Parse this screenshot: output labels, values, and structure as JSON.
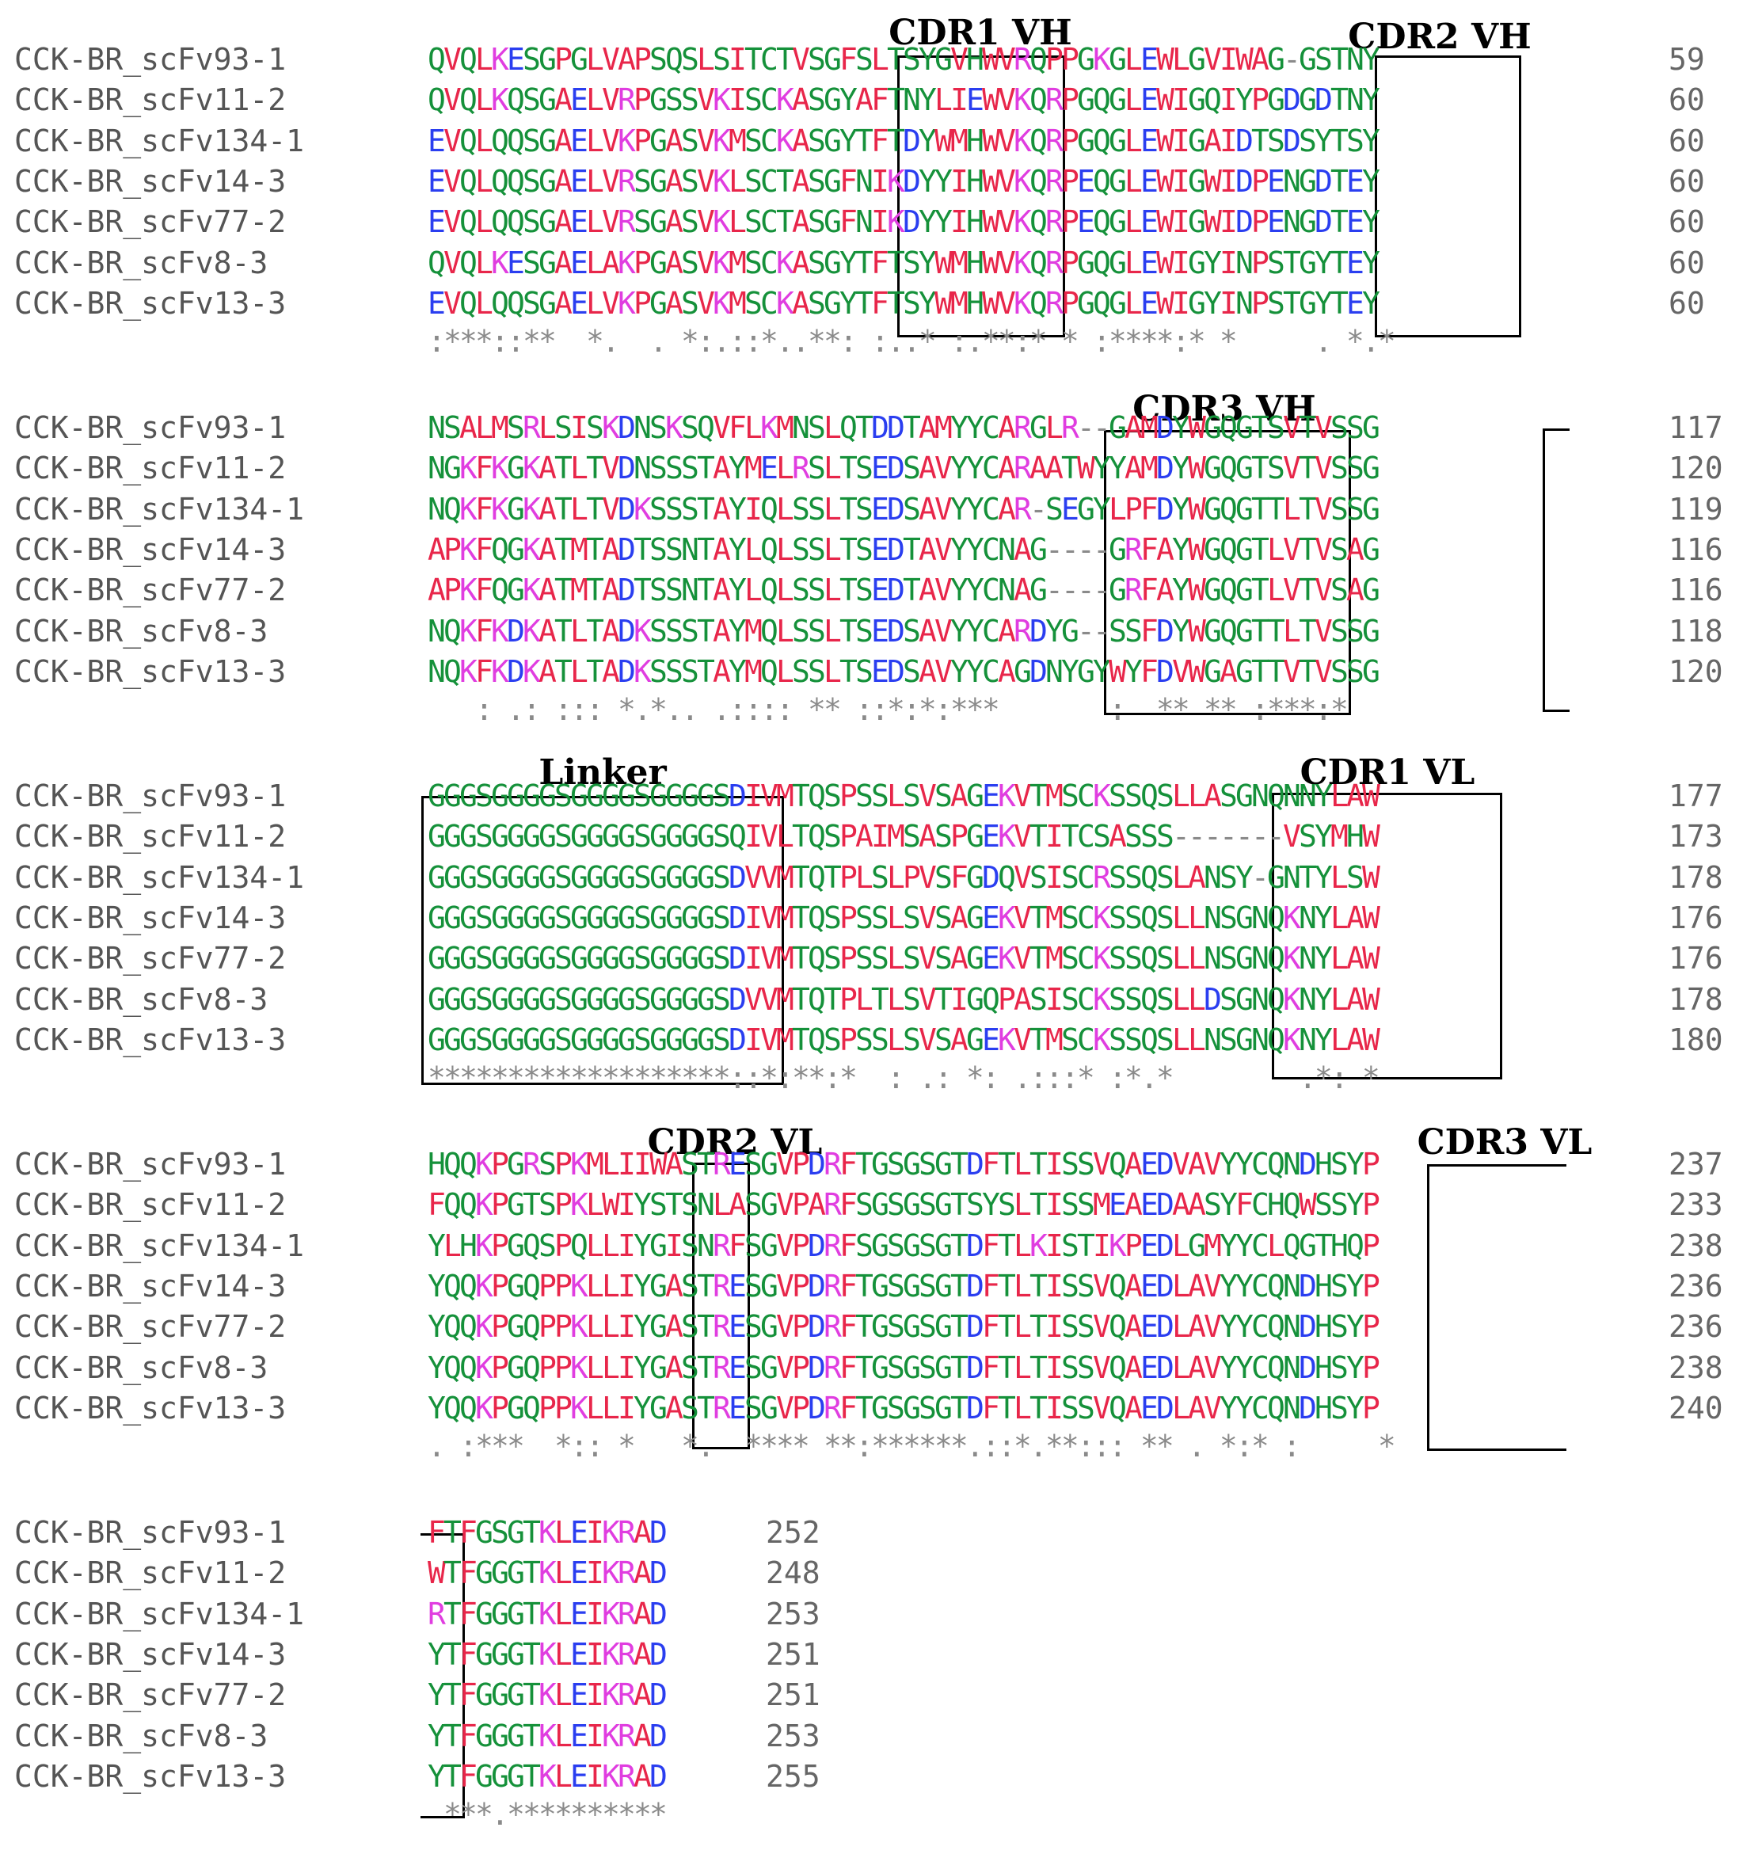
{
  "colors": {
    "hydrophobic": "#e8264a",
    "polar": "#15913a",
    "basic": "#e03de0",
    "acidic": "#2a3ef0",
    "other": "#8a8a8a"
  },
  "sequences": [
    "CCK-BR_scFv93-1",
    "CCK-BR_scFv11-2",
    "CCK-BR_scFv134-1",
    "CCK-BR_scFv14-3",
    "CCK-BR_scFv77-2",
    "CCK-BR_scFv8-3",
    "CCK-BR_scFv13-3"
  ],
  "blocks": [
    {
      "rows": [
        {
          "seq": "QVQLKESGPGLVAPSQSLSITCTVSGFSLTSYGVHWVRQPPGKGLEWLGVIWAG-GSTNY",
          "end": "59"
        },
        {
          "seq": "QVQLKQSGAELVRPGSSVKISCKASGYAFTNYLIEWVKQRPGQGLEWIGQIYPGDGDTNY",
          "end": "60"
        },
        {
          "seq": "EVQLQQSGAELVKPGASVKMSCKASGYTFTDYWMHWVKQRPGQGLEWIGAIDTSDSYTSY",
          "end": "60"
        },
        {
          "seq": "EVQLQQSGAELVRSGASVKLSCTASGFNIKDYYIHWVKQRPEQGLEWIGWIDPENGDTEY",
          "end": "60"
        },
        {
          "seq": "EVQLQQSGAELVRSGASVKLSCTASGFNIKDYYIHWVKQRPEQGLEWIGWIDPENGDTEY",
          "end": "60"
        },
        {
          "seq": "QVQLKESGAELAKPGASVKMSCKASGYTFTSYWMHWVKQRPGQGLEWIGYINPSTGYTEY",
          "end": "60"
        },
        {
          "seq": "EVQLQQSGAELVKPGASVKMSCKASGYTFTSYWMHWVKQRPGQGLEWIGYINPSTGYTEY",
          "end": "60"
        }
      ],
      "consensus": ":***::**  *.  . *:.::*..**: :..* :.**:* * :****:* *     . *.*"
    },
    {
      "rows": [
        {
          "seq": "NSALMSRLSISKDNSKSQVFLKMNSLQTDDTAMYYCARGLR--GAMDYWGQGTSVTVSSG",
          "end": "117"
        },
        {
          "seq": "NGKFKGKATLTVDNSSSTAYMELRSLTSEDSAVYYCARAATWYYAMDYWGQGTSVTVSSG",
          "end": "120"
        },
        {
          "seq": "NQKFKGKATLTVDKSSSTAYIQLSSLTSEDSAVYYCAR-SEGYLPFDYWGQGTTLTVSSG",
          "end": "119"
        },
        {
          "seq": "APKFQGKATMTADTSSNTAYLQLSSLTSEDTAVYYCNAG----GRFAYWGQGTLVTVSAG",
          "end": "116"
        },
        {
          "seq": "APKFQGKATMTADTSSNTAYLQLSSLTSEDTAVYYCNAG----GRFAYWGQGTLVTVSAG",
          "end": "116"
        },
        {
          "seq": "NQKFKDKATLTADKSSSTAYMQLSSLTSEDSAVYYCARDYG--SSFDYWGQGTTLTVSSG",
          "end": "118"
        },
        {
          "seq": "NQKFKDKATLTADKSSSTAYMQLSSLTSEDSAVYYCAGDNYGYWYFDVWGAGTTVTVSSG",
          "end": "120"
        }
      ],
      "consensus": "   : .: ::: *.*.. .:::: ** ::*:*:***       :  ** ** :***:*"
    },
    {
      "rows": [
        {
          "seq": "GGGSGGGGSGGGGSGGGGSDIVMTQSPSSLSVSAGEKVTMSCKSSQSLLASGNQNNYLAW",
          "end": "177"
        },
        {
          "seq": "GGGSGGGGSGGGGSGGGGSQIVLTQSPAIMSASPGEKVTITCSASSS-------VSYMHW",
          "end": "173"
        },
        {
          "seq": "GGGSGGGGSGGGGSGGGGSDVVMTQTPLSLPVSFGDQVSISCRSSQSLANSY-GNTYLSW",
          "end": "178"
        },
        {
          "seq": "GGGSGGGGSGGGGSGGGGSDIVMTQSPSSLSVSAGEKVTMSCKSSQSLLNSGNQKNYLAW",
          "end": "176"
        },
        {
          "seq": "GGGSGGGGSGGGGSGGGGSDIVMTQSPSSLSVSAGEKVTMSCKSSQSLLNSGNQKNYLAW",
          "end": "176"
        },
        {
          "seq": "GGGSGGGGSGGGGSGGGGSDVVMTQTPLTLSVTIGQPASISCKSSQSLLDSGNQKNYLAW",
          "end": "178"
        },
        {
          "seq": "GGGSGGGGSGGGGSGGGGSDIVMTQSPSSLSVSAGEKVTMSCKSSQSLLNSGNQKNYLAW",
          "end": "180"
        }
      ],
      "consensus": "*******************::*:**:*  : .: *: .:::* :*.*        .*: *"
    },
    {
      "rows": [
        {
          "seq": "HQQKPGRSPKMLIIWASTRESGVPDRFTGSGSGTDFTLTISSVQAEDVAVYYCQNDHSYP",
          "end": "237"
        },
        {
          "seq": "FQQKPGTSPKLWIYSTSNLASGVPARFSGSGSGTSYSLTISSMEAEDAASYFCHQWSSYP",
          "end": "233"
        },
        {
          "seq": "YLHKPGQSPQLLIYGISNRFSGVPDRFSGSGSGTDFTLKISTIKPEDLGMYYCLQGTHQP",
          "end": "238"
        },
        {
          "seq": "YQQKPGQPPKLLIYGASTRESGVPDRFTGSGSGTDFTLTISSVQAEDLAVYYCQNDHSYP",
          "end": "236"
        },
        {
          "seq": "YQQKPGQPPKLLIYGASTRESGVPDRFTGSGSGTDFTLTISSVQAEDLAVYYCQNDHSYP",
          "end": "236"
        },
        {
          "seq": "YQQKPGQPPKLLIYGASTRESGVPDRFTGSGSGTDFTLTISSVQAEDLAVYYCQNDHSYP",
          "end": "238"
        },
        {
          "seq": "YQQKPGQPPKLLIYGASTRESGVPDRFTGSGSGTDFTLTISSVQAEDLAVYYCQNDHSYP",
          "end": "240"
        }
      ],
      "consensus": ". :***  *:: *   *.  **** **:******.::*.**::: ** . *:* :     *"
    },
    {
      "rows": [
        {
          "seq": "FTFGSGTKLEIKRAD",
          "end": "252"
        },
        {
          "seq": "WTFGGGTKLEIKRAD",
          "end": "248"
        },
        {
          "seq": "RTFGGGTKLEIKRAD",
          "end": "253"
        },
        {
          "seq": "YTFGGGTKLEIKRAD",
          "end": "251"
        },
        {
          "seq": "YTFGGGTKLEIKRAD",
          "end": "251"
        },
        {
          "seq": "YTFGGGTKLEIKRAD",
          "end": "253"
        },
        {
          "seq": "YTFGGGTKLEIKRAD",
          "end": "255"
        }
      ],
      "consensus": " ***.**********"
    }
  ],
  "regions": {
    "cdr1_vh": "CDR1 VH",
    "cdr2_vh": "CDR2 VH",
    "cdr3_vh": "CDR3 VH",
    "linker": "Linker",
    "cdr1_vl": "CDR1 VL",
    "cdr2_vl": "CDR2 VL",
    "cdr3_vl": "CDR3 VL"
  }
}
